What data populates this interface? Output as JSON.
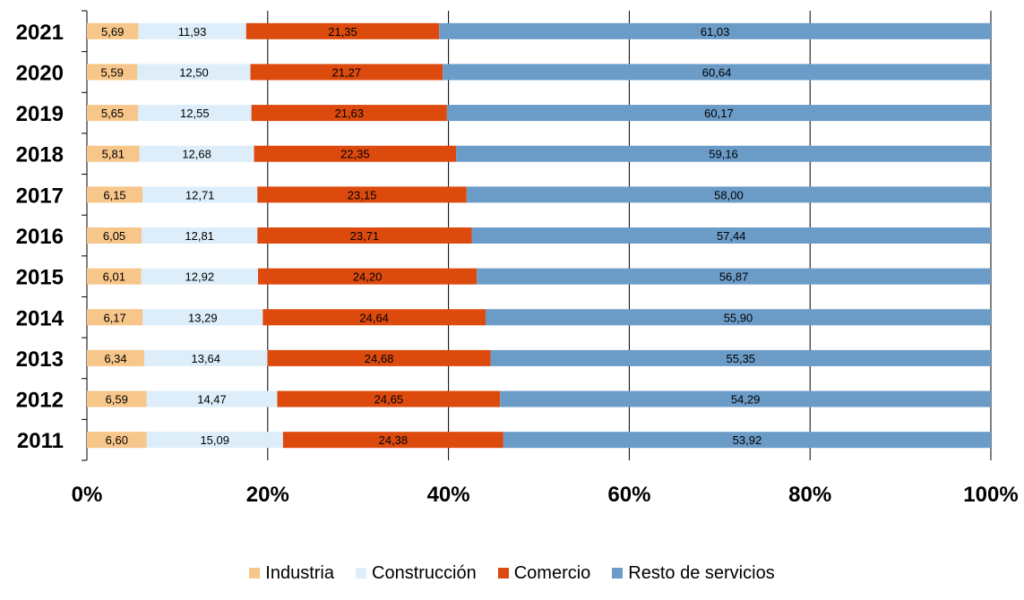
{
  "chart_data": {
    "type": "bar",
    "orientation": "horizontal",
    "stacked": "percent",
    "categories": [
      "2021",
      "2020",
      "2019",
      "2018",
      "2017",
      "2016",
      "2015",
      "2014",
      "2013",
      "2012",
      "2011"
    ],
    "series": [
      {
        "name": "Industria",
        "color": "#F7C68A",
        "values": [
          5.69,
          5.59,
          5.65,
          5.81,
          6.15,
          6.05,
          6.01,
          6.17,
          6.34,
          6.59,
          6.6
        ],
        "labels": [
          "5,69",
          "5,59",
          "5,65",
          "5,81",
          "6,15",
          "6,05",
          "6,01",
          "6,17",
          "6,34",
          "6,59",
          "6,60"
        ]
      },
      {
        "name": "Construcción",
        "color": "#DDEEFA",
        "values": [
          11.93,
          12.5,
          12.55,
          12.68,
          12.71,
          12.81,
          12.92,
          13.29,
          13.64,
          14.47,
          15.09
        ],
        "labels": [
          "11,93",
          "12,50",
          "12,55",
          "12,68",
          "12,71",
          "12,81",
          "12,92",
          "13,29",
          "13,64",
          "14,47",
          "15,09"
        ]
      },
      {
        "name": "Comercio",
        "color": "#DD4A0E",
        "values": [
          21.35,
          21.27,
          21.63,
          22.35,
          23.15,
          23.71,
          24.2,
          24.64,
          24.68,
          24.65,
          24.38
        ],
        "labels": [
          "21,35",
          "21,27",
          "21,63",
          "22,35",
          "23,15",
          "23,71",
          "24,20",
          "24,64",
          "24,68",
          "24,65",
          "24,38"
        ]
      },
      {
        "name": "Resto de servicios",
        "color": "#6B9CC8",
        "values": [
          61.03,
          60.64,
          60.17,
          59.16,
          58.0,
          57.44,
          56.87,
          55.9,
          55.35,
          54.29,
          53.92
        ],
        "labels": [
          "61,03",
          "60,64",
          "60,17",
          "59,16",
          "58,00",
          "57,44",
          "56,87",
          "55,90",
          "55,35",
          "54,29",
          "53,92"
        ]
      }
    ],
    "x_ticks": [
      "0%",
      "20%",
      "40%",
      "60%",
      "80%",
      "100%"
    ],
    "xlim": [
      0,
      100
    ],
    "grid": "vertical",
    "legend_position": "bottom",
    "title": "",
    "xlabel": "",
    "ylabel": ""
  }
}
